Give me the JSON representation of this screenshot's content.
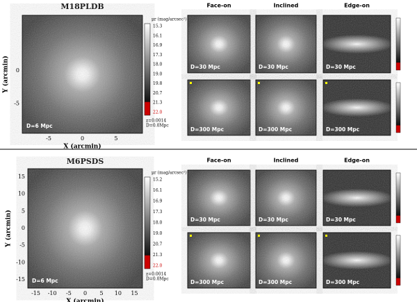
{
  "figures": [
    {
      "title": "M18PLDB",
      "main": {
        "label": "D=6 Mpc",
        "x_label": "X (arcmin)",
        "y_label": "Y (arcmin)",
        "x_ticks": [
          "-5",
          "0",
          "5"
        ],
        "y_ticks": [
          "0",
          "-5"
        ]
      },
      "colorbar": {
        "title": "μr (mag/arcsec²)",
        "ticks": [
          "15.3",
          "16.1",
          "16.9",
          "17.3",
          "18.0",
          "19.0",
          "19.8",
          "20.7",
          "21.3",
          "22.0"
        ],
        "notes": [
          "z=0.0014",
          "D=0.0Mpc"
        ]
      },
      "views": [
        "Face-on",
        "Inclined",
        "Edge-on"
      ],
      "panels": [
        [
          "D=30 Mpc",
          "D=30 Mpc",
          "D=30 Mpc"
        ],
        [
          "D=300 Mpc",
          "D=300 Mpc",
          "D=300 Mpc"
        ]
      ]
    },
    {
      "title": "M6PSDS",
      "main": {
        "label": "D=6 Mpc",
        "x_label": "X (arcmin)",
        "y_label": "Y (arcmin)",
        "x_ticks": [
          "-15",
          "-10",
          "-5",
          "0",
          "5",
          "10",
          "15"
        ],
        "y_ticks": [
          "15",
          "10",
          "5",
          "0",
          "-5",
          "-10",
          "-15"
        ]
      },
      "colorbar": {
        "title": "μr (mag/arcsec²)",
        "ticks": [
          "15.2",
          "16.1",
          "16.9",
          "17.3",
          "18.0",
          "19.0",
          "20.7",
          "21.3",
          "22.0"
        ],
        "notes": [
          "z=0.0014",
          "D=0.0Mpc"
        ]
      },
      "views": [
        "Face-on",
        "Inclined",
        "Edge-on"
      ],
      "panels": [
        [
          "D=30 Mpc",
          "D=30 Mpc",
          "D=30 Mpc"
        ],
        [
          "D=300 Mpc",
          "D=300 Mpc",
          "D=300 Mpc"
        ]
      ]
    }
  ]
}
